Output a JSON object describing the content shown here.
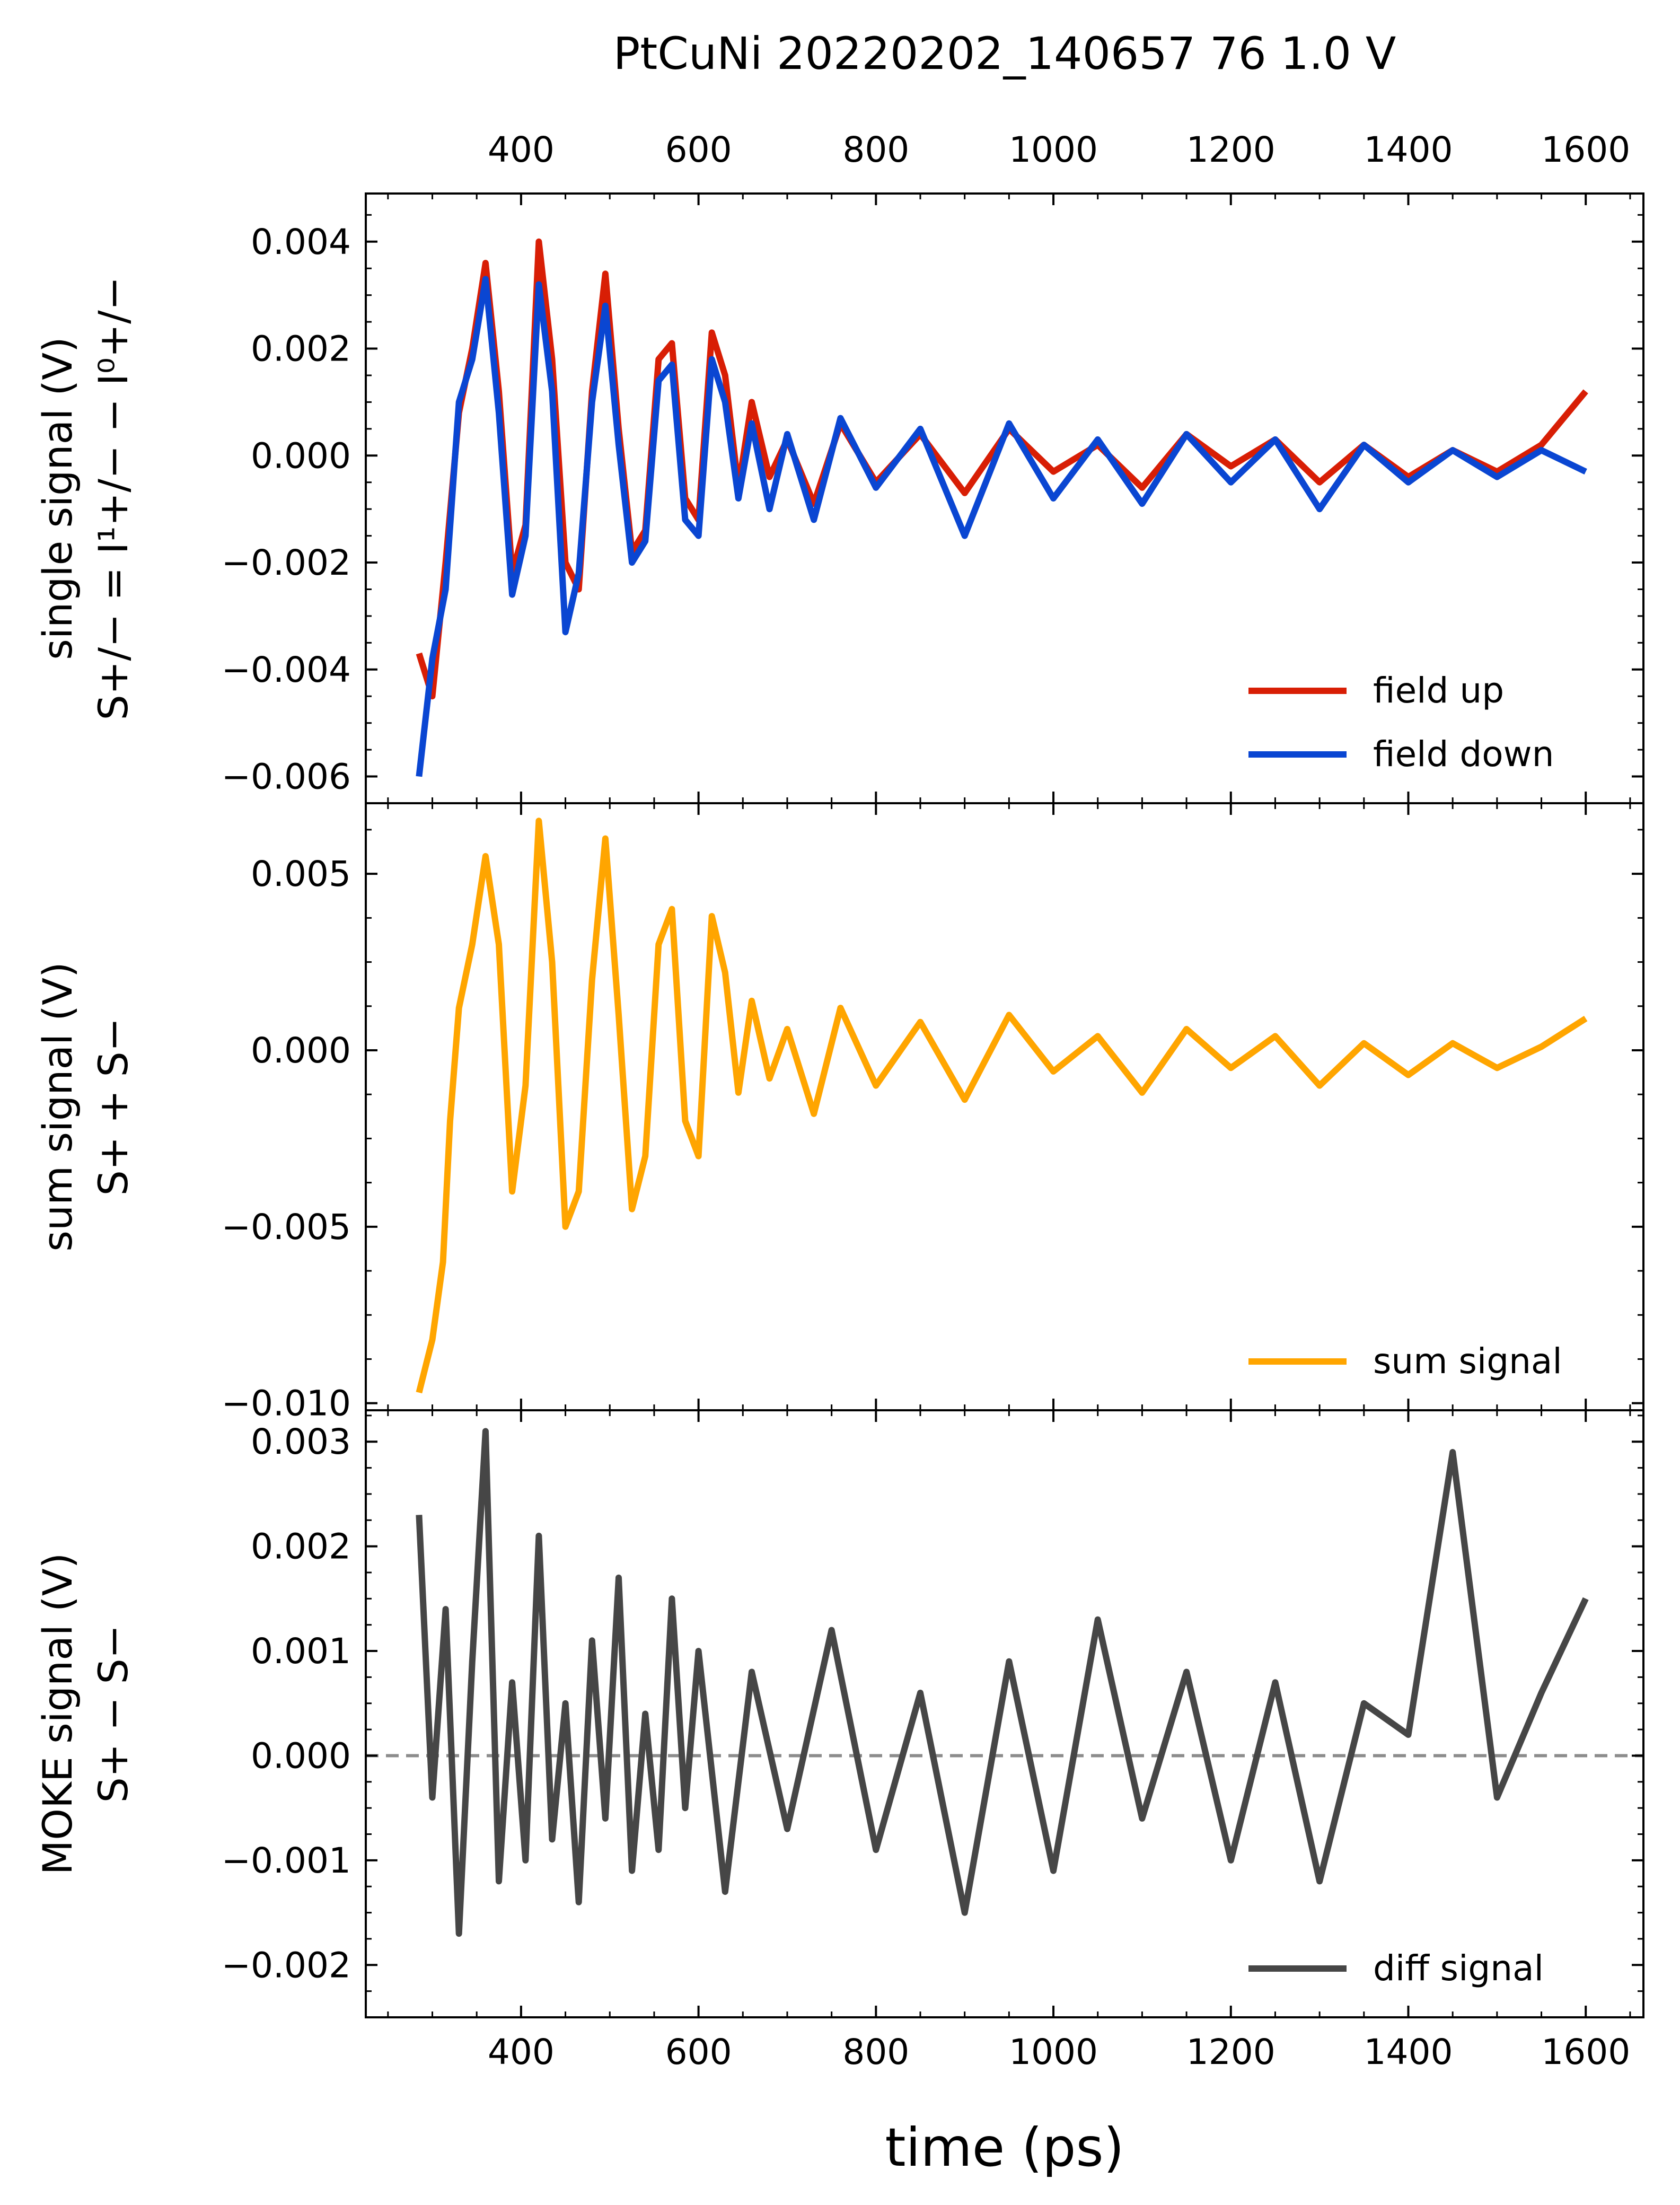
{
  "figure": {
    "title": "PtCuNi  20220202_140657    76   1.0 V",
    "xlabel": "time (ps)",
    "xlim": [
      225,
      1665
    ],
    "xticks": [
      400,
      600,
      800,
      1000,
      1200,
      1400,
      1600
    ],
    "xtick_labels": [
      "400",
      "600",
      "800",
      "1000",
      "1200",
      "1400",
      "1600"
    ]
  },
  "panels": [
    {
      "id": "single",
      "ylabel_line1": "single signal  (V)",
      "ylabel_line2": "S+/− = I¹+/− − I⁰+/−",
      "ylim": [
        -0.0065,
        0.0049
      ],
      "yticks": [
        -0.006,
        -0.004,
        -0.002,
        0.0,
        0.002,
        0.004
      ],
      "ytick_labels": [
        "−0.006",
        "−0.004",
        "−0.002",
        "0.000",
        "0.002",
        "0.004"
      ],
      "legend": [
        "field  up",
        "field down"
      ],
      "legend_position": "lower right"
    },
    {
      "id": "sum",
      "ylabel_line1": "sum signal  (V)",
      "ylabel_line2": "S+ + S−",
      "ylim": [
        -0.0102,
        0.007
      ],
      "yticks": [
        -0.01,
        -0.005,
        0.0,
        0.005
      ],
      "ytick_labels": [
        "−0.010",
        "−0.005",
        "0.000",
        "0.005"
      ],
      "legend": [
        "sum signal"
      ],
      "legend_position": "lower right"
    },
    {
      "id": "diff",
      "ylabel_line1": "MOKE signal (V)",
      "ylabel_line2": "S+ − S−",
      "ylim": [
        -0.0025,
        0.0033
      ],
      "yticks": [
        -0.002,
        -0.001,
        0.0,
        0.001,
        0.002,
        0.003
      ],
      "ytick_labels": [
        "−0.002",
        "−0.001",
        "0.000",
        "0.001",
        "0.002",
        "0.003"
      ],
      "legend": [
        "diff signal"
      ],
      "legend_position": "lower right",
      "zero_line": true
    }
  ],
  "colors": {
    "field_up": "#d81e05",
    "field_down": "#0a46d2",
    "sum": "#ffa500",
    "diff": "#464646",
    "zero_line": "#8c8c8c"
  },
  "chart_data": [
    {
      "type": "line",
      "panel": "single",
      "ylabel": "single signal  (V)",
      "series": [
        {
          "name": "field  up",
          "x": [
            285,
            300,
            315,
            330,
            345,
            360,
            375,
            390,
            405,
            420,
            435,
            450,
            465,
            480,
            495,
            510,
            525,
            540,
            555,
            570,
            585,
            600,
            615,
            630,
            645,
            660,
            680,
            700,
            730,
            760,
            800,
            850,
            900,
            950,
            1000,
            1050,
            1100,
            1150,
            1200,
            1250,
            1300,
            1350,
            1400,
            1450,
            1500,
            1550,
            1600
          ],
          "y": [
            -0.0037,
            -0.0045,
            -0.002,
            0.0008,
            0.002,
            0.0036,
            0.0012,
            -0.0022,
            -0.0013,
            0.004,
            0.0018,
            -0.002,
            -0.0025,
            0.0012,
            0.0034,
            0.0005,
            -0.0018,
            -0.0014,
            0.0018,
            0.0021,
            -0.0008,
            -0.0012,
            0.0023,
            0.0015,
            -0.0006,
            0.001,
            -0.0004,
            0.0003,
            -0.0009,
            0.0006,
            -0.0005,
            0.0004,
            -0.0007,
            0.0005,
            -0.0003,
            0.0002,
            -0.0006,
            0.0004,
            -0.0002,
            0.0003,
            -0.0005,
            0.0002,
            -0.0004,
            0.0001,
            -0.0003,
            0.0002,
            0.0012
          ]
        },
        {
          "name": "field down",
          "x": [
            285,
            300,
            315,
            330,
            345,
            360,
            375,
            390,
            405,
            420,
            435,
            450,
            465,
            480,
            495,
            510,
            525,
            540,
            555,
            570,
            585,
            600,
            615,
            630,
            645,
            660,
            680,
            700,
            730,
            760,
            800,
            850,
            900,
            950,
            1000,
            1050,
            1100,
            1150,
            1200,
            1250,
            1300,
            1350,
            1400,
            1450,
            1500,
            1550,
            1600
          ],
          "y": [
            -0.006,
            -0.0038,
            -0.0025,
            0.001,
            0.0018,
            0.0033,
            0.0008,
            -0.0026,
            -0.0015,
            0.0032,
            0.0012,
            -0.0033,
            -0.0022,
            0.001,
            0.0028,
            0.0002,
            -0.002,
            -0.0016,
            0.0014,
            0.0017,
            -0.0012,
            -0.0015,
            0.0018,
            0.001,
            -0.0008,
            0.0006,
            -0.001,
            0.0004,
            -0.0012,
            0.0007,
            -0.0006,
            0.0005,
            -0.0015,
            0.0006,
            -0.0008,
            0.0003,
            -0.0009,
            0.0004,
            -0.0005,
            0.0003,
            -0.001,
            0.0002,
            -0.0005,
            0.0001,
            -0.0004,
            0.0001,
            -0.0003
          ]
        }
      ]
    },
    {
      "type": "line",
      "panel": "sum",
      "ylabel": "sum signal  (V)",
      "series": [
        {
          "name": "sum signal",
          "x": [
            285,
            300,
            312,
            320,
            330,
            345,
            360,
            375,
            390,
            405,
            420,
            435,
            450,
            465,
            480,
            495,
            510,
            525,
            540,
            555,
            570,
            585,
            600,
            615,
            630,
            645,
            660,
            680,
            700,
            730,
            760,
            800,
            850,
            900,
            950,
            1000,
            1050,
            1100,
            1150,
            1200,
            1250,
            1300,
            1350,
            1400,
            1450,
            1500,
            1550,
            1600
          ],
          "y": [
            -0.0097,
            -0.0082,
            -0.006,
            -0.002,
            0.0012,
            0.003,
            0.0055,
            0.003,
            -0.004,
            -0.001,
            0.0065,
            0.0025,
            -0.005,
            -0.004,
            0.002,
            0.006,
            0.001,
            -0.0045,
            -0.003,
            0.003,
            0.004,
            -0.002,
            -0.003,
            0.0038,
            0.0022,
            -0.0012,
            0.0014,
            -0.0008,
            0.0006,
            -0.0018,
            0.0012,
            -0.001,
            0.0008,
            -0.0014,
            0.001,
            -0.0006,
            0.0004,
            -0.0012,
            0.0006,
            -0.0005,
            0.0004,
            -0.001,
            0.0002,
            -0.0007,
            0.0002,
            -0.0005,
            0.0001,
            0.0009
          ]
        }
      ]
    },
    {
      "type": "line",
      "panel": "diff",
      "ylabel": "MOKE signal (V)",
      "series": [
        {
          "name": "diff signal",
          "x": [
            285,
            300,
            315,
            330,
            345,
            360,
            375,
            390,
            405,
            420,
            435,
            450,
            465,
            480,
            495,
            510,
            525,
            540,
            555,
            570,
            585,
            600,
            630,
            660,
            700,
            750,
            800,
            850,
            900,
            950,
            1000,
            1050,
            1100,
            1150,
            1200,
            1250,
            1300,
            1350,
            1400,
            1450,
            1500,
            1550,
            1600
          ],
          "y": [
            0.0023,
            -0.0004,
            0.0014,
            -0.0017,
            0.0009,
            0.0031,
            -0.0012,
            0.0007,
            -0.001,
            0.0021,
            -0.0008,
            0.0005,
            -0.0014,
            0.0011,
            -0.0006,
            0.0017,
            -0.0011,
            0.0004,
            -0.0009,
            0.0015,
            -0.0005,
            0.001,
            -0.0013,
            0.0008,
            -0.0007,
            0.0012,
            -0.0009,
            0.0006,
            -0.0015,
            0.0009,
            -0.0011,
            0.0013,
            -0.0006,
            0.0008,
            -0.001,
            0.0007,
            -0.0012,
            0.0005,
            0.0002,
            0.0029,
            -0.0004,
            0.0006,
            0.0015
          ]
        }
      ]
    }
  ]
}
